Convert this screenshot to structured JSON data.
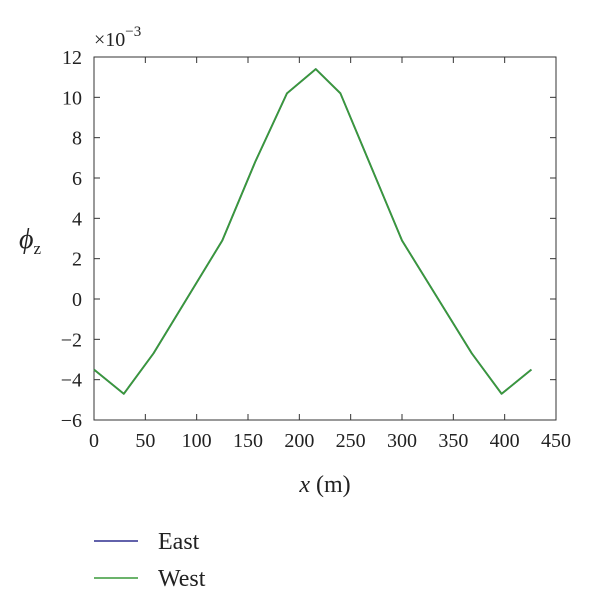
{
  "chart_data": {
    "type": "line",
    "xlabel_var": "x",
    "xlabel_unit": "(m)",
    "ylabel_main": "ϕ",
    "ylabel_sub": "z",
    "y_multiplier_base": "×10",
    "y_multiplier_exp": "−3",
    "xlim": [
      0,
      450
    ],
    "ylim": [
      -6,
      12
    ],
    "xticks": [
      0,
      50,
      100,
      150,
      200,
      250,
      300,
      350,
      400,
      450
    ],
    "yticks": [
      -6,
      -4,
      -2,
      0,
      2,
      4,
      6,
      8,
      10,
      12
    ],
    "ytick_labels": [
      "−6",
      "−4",
      "−2",
      "0",
      "2",
      "4",
      "6",
      "8",
      "10",
      "12"
    ],
    "grid": false,
    "legend_position": "bottom-left",
    "series": [
      {
        "name": "East",
        "color": "#2f2f8f",
        "x": [
          0,
          29,
          58,
          125,
          157,
          188,
          216,
          240,
          268,
          300,
          368,
          397,
          426
        ],
        "y": [
          -3.5,
          -4.7,
          -2.7,
          2.9,
          6.8,
          10.2,
          11.4,
          10.2,
          6.8,
          2.9,
          -2.7,
          -4.7,
          -3.5
        ]
      },
      {
        "name": "West",
        "color": "#3a9a3a",
        "x": [
          0,
          29,
          58,
          125,
          157,
          188,
          216,
          240,
          268,
          300,
          368,
          397,
          426
        ],
        "y": [
          -3.5,
          -4.7,
          -2.7,
          2.9,
          6.8,
          10.2,
          11.4,
          10.2,
          6.8,
          2.9,
          -2.7,
          -4.7,
          -3.5
        ]
      }
    ]
  }
}
